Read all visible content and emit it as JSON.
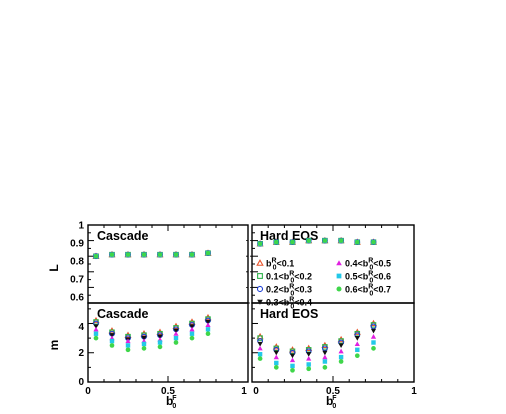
{
  "figure": {
    "ylabel_top": "L",
    "ylabel_bottom": "m",
    "xlabel": "b",
    "xlabel_sub": "0",
    "xlabel_sup": "F"
  },
  "panels": {
    "top_left_title": "Cascade",
    "top_right_title": "Hard EOS",
    "bottom_left_title": "Cascade",
    "bottom_right_title": "Hard EOS"
  },
  "ticks": {
    "L": [
      "0.6",
      "0.7",
      "0.8",
      "0.9",
      "1"
    ],
    "L_extra": "0.5",
    "m": [
      "0",
      "2",
      "4"
    ],
    "x_left": [
      "0",
      "0.5",
      "1"
    ],
    "x_right": [
      "0",
      "0.5",
      "1"
    ]
  },
  "legend": [
    {
      "pre": "b",
      "sub": "0",
      "sup": "R",
      "post": "<0.1",
      "pre_label": "",
      "marker": "triangle-open",
      "color": "#e8532a"
    },
    {
      "pre": "b",
      "sub": "0",
      "sup": "R",
      "post": "<0.2",
      "pre_label": "0.1<",
      "marker": "square-open",
      "color": "#2db34a"
    },
    {
      "pre": "b",
      "sub": "0",
      "sup": "R",
      "post": "<0.3",
      "pre_label": "0.2<",
      "marker": "circle-open",
      "color": "#1c3fd6"
    },
    {
      "pre": "b",
      "sub": "0",
      "sup": "R",
      "post": "<0.4",
      "pre_label": "0.3<",
      "marker": "triangle-down",
      "color": "#111111"
    },
    {
      "pre": "b",
      "sub": "0",
      "sup": "R",
      "post": "<0.5",
      "pre_label": "0.4<",
      "marker": "triangle-up",
      "color": "#e020e0"
    },
    {
      "pre": "b",
      "sub": "0",
      "sup": "R",
      "post": "<0.6",
      "pre_label": "0.5<",
      "marker": "square",
      "color": "#22c8e8"
    },
    {
      "pre": "b",
      "sub": "0",
      "sup": "R",
      "post": "<0.7",
      "pre_label": "0.6<",
      "marker": "circle",
      "color": "#3fd64a"
    }
  ],
  "chart_data": [
    {
      "type": "scatter",
      "title": "Cascade",
      "ylabel": "L",
      "xlim": [
        0,
        1
      ],
      "ylim": [
        0.5,
        1
      ],
      "x": [
        0.05,
        0.15,
        0.25,
        0.35,
        0.45,
        0.55,
        0.65,
        0.75
      ],
      "series": [
        {
          "name": "b0R<0.1",
          "values": [
            0.8,
            0.81,
            0.81,
            0.81,
            0.81,
            0.81,
            0.81,
            0.82
          ]
        },
        {
          "name": "0.1<b0R<0.2",
          "values": [
            0.8,
            0.81,
            0.81,
            0.81,
            0.81,
            0.81,
            0.81,
            0.82
          ]
        },
        {
          "name": "0.2<b0R<0.3",
          "values": [
            0.8,
            0.81,
            0.81,
            0.81,
            0.81,
            0.81,
            0.81,
            0.82
          ]
        },
        {
          "name": "0.3<b0R<0.4",
          "values": [
            0.8,
            0.81,
            0.81,
            0.81,
            0.81,
            0.81,
            0.81,
            0.82
          ]
        },
        {
          "name": "0.4<b0R<0.5",
          "values": [
            0.8,
            0.81,
            0.81,
            0.81,
            0.81,
            0.81,
            0.81,
            0.82
          ]
        },
        {
          "name": "0.5<b0R<0.6",
          "values": [
            0.8,
            0.81,
            0.81,
            0.81,
            0.81,
            0.81,
            0.81,
            0.82
          ]
        },
        {
          "name": "0.6<b0R<0.7",
          "values": [
            0.8,
            0.81,
            0.81,
            0.81,
            0.81,
            0.81,
            0.81,
            0.82
          ]
        }
      ]
    },
    {
      "type": "scatter",
      "title": "Hard EOS",
      "ylabel": "L",
      "xlim": [
        0,
        1
      ],
      "ylim": [
        0.5,
        1
      ],
      "x": [
        0.05,
        0.15,
        0.25,
        0.35,
        0.45,
        0.55,
        0.65,
        0.75
      ],
      "series": [
        {
          "name": "b0R<0.1",
          "values": [
            0.88,
            0.89,
            0.89,
            0.9,
            0.9,
            0.9,
            0.89,
            0.89
          ]
        },
        {
          "name": "0.1<b0R<0.2",
          "values": [
            0.88,
            0.89,
            0.89,
            0.9,
            0.9,
            0.9,
            0.89,
            0.89
          ]
        },
        {
          "name": "0.2<b0R<0.3",
          "values": [
            0.88,
            0.89,
            0.89,
            0.9,
            0.9,
            0.9,
            0.89,
            0.89
          ]
        },
        {
          "name": "0.3<b0R<0.4",
          "values": [
            0.88,
            0.89,
            0.89,
            0.9,
            0.9,
            0.9,
            0.89,
            0.89
          ]
        },
        {
          "name": "0.4<b0R<0.5",
          "values": [
            0.88,
            0.89,
            0.89,
            0.9,
            0.9,
            0.9,
            0.89,
            0.89
          ]
        },
        {
          "name": "0.5<b0R<0.6",
          "values": [
            0.88,
            0.89,
            0.89,
            0.9,
            0.9,
            0.9,
            0.89,
            0.89
          ]
        },
        {
          "name": "0.6<b0R<0.7",
          "values": [
            0.88,
            0.89,
            0.89,
            0.9,
            0.9,
            0.9,
            0.89,
            0.89
          ]
        }
      ]
    },
    {
      "type": "scatter",
      "title": "Cascade",
      "ylabel": "m",
      "xlabel": "b0F",
      "xlim": [
        0,
        1
      ],
      "ylim": [
        0,
        5.4
      ],
      "x": [
        0.05,
        0.15,
        0.25,
        0.35,
        0.45,
        0.55,
        0.65,
        0.75
      ],
      "series": [
        {
          "name": "b0R<0.1",
          "values": [
            4.2,
            3.5,
            3.2,
            3.3,
            3.4,
            3.8,
            4.1,
            4.4
          ]
        },
        {
          "name": "0.1<b0R<0.2",
          "values": [
            4.1,
            3.4,
            3.1,
            3.2,
            3.3,
            3.7,
            4.0,
            4.3
          ]
        },
        {
          "name": "0.2<b0R<0.3",
          "values": [
            4.0,
            3.3,
            3.0,
            3.1,
            3.2,
            3.6,
            3.9,
            4.2
          ]
        },
        {
          "name": "0.3<b0R<0.4",
          "values": [
            3.8,
            3.2,
            2.9,
            3.0,
            3.1,
            3.5,
            3.8,
            4.1
          ]
        },
        {
          "name": "0.4<b0R<0.5",
          "values": [
            3.6,
            3.0,
            2.8,
            2.8,
            2.9,
            3.3,
            3.6,
            3.9
          ]
        },
        {
          "name": "0.5<b0R<0.6",
          "values": [
            3.3,
            2.8,
            2.5,
            2.6,
            2.7,
            3.0,
            3.3,
            3.6
          ]
        },
        {
          "name": "0.6<b0R<0.7",
          "values": [
            3.0,
            2.5,
            2.2,
            2.3,
            2.4,
            2.7,
            3.0,
            3.3
          ]
        }
      ]
    },
    {
      "type": "scatter",
      "title": "Hard EOS",
      "ylabel": "m",
      "xlabel": "b0F",
      "xlim": [
        0,
        1
      ],
      "ylim": [
        0,
        5.4
      ],
      "x": [
        0.05,
        0.15,
        0.25,
        0.35,
        0.45,
        0.55,
        0.65,
        0.75
      ],
      "series": [
        {
          "name": "b0R<0.1",
          "values": [
            3.1,
            2.4,
            2.2,
            2.3,
            2.5,
            2.9,
            3.4,
            4.0
          ]
        },
        {
          "name": "0.1<b0R<0.2",
          "values": [
            3.0,
            2.3,
            2.1,
            2.2,
            2.4,
            2.8,
            3.3,
            3.9
          ]
        },
        {
          "name": "0.2<b0R<0.3",
          "values": [
            2.8,
            2.2,
            2.0,
            2.1,
            2.3,
            2.7,
            3.2,
            3.8
          ]
        },
        {
          "name": "0.3<b0R<0.4",
          "values": [
            2.6,
            2.0,
            1.8,
            1.9,
            2.0,
            2.5,
            3.0,
            3.5
          ]
        },
        {
          "name": "0.4<b0R<0.5",
          "values": [
            2.3,
            1.7,
            1.5,
            1.6,
            1.7,
            2.1,
            2.6,
            3.1
          ]
        },
        {
          "name": "0.5<b0R<0.6",
          "values": [
            1.9,
            1.3,
            1.1,
            1.2,
            1.4,
            1.7,
            2.2,
            2.7
          ]
        },
        {
          "name": "0.6<b0R<0.7",
          "values": [
            1.6,
            1.0,
            0.8,
            0.9,
            1.0,
            1.4,
            1.8,
            2.3
          ]
        }
      ]
    }
  ]
}
